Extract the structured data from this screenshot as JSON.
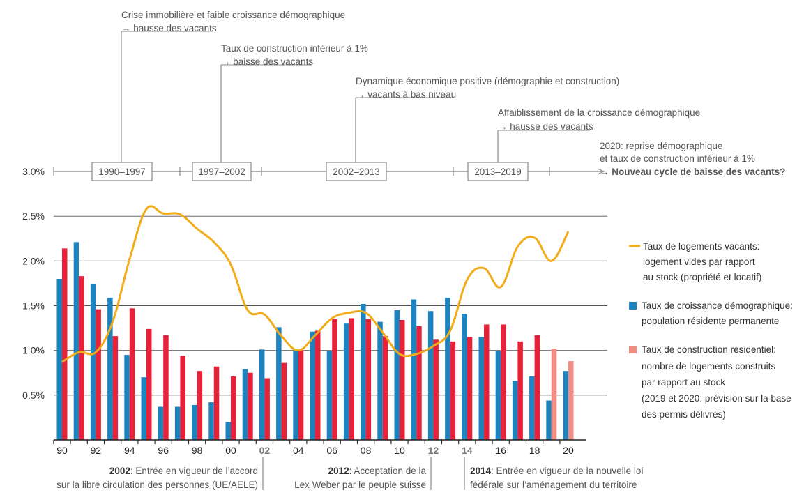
{
  "timeline": {
    "periods": [
      {
        "label": "1990–1997",
        "note_line1": "Crise immobilière et faible croissance démographique",
        "note_line2": "→ hausse des vacants"
      },
      {
        "label": "1997–2002",
        "note_line1": "Taux de construction inférieur à 1%",
        "note_line2": "→ baisse des vacants"
      },
      {
        "label": "2002–2013",
        "note_line1": "Dynamique économique positive (démographie et construction)",
        "note_line2": "→ vacants à bas niveau"
      },
      {
        "label": "2013–2019",
        "note_line1": "Affaiblissement de la croissance démographique",
        "note_line2": "→ hausse des vacants"
      }
    ],
    "final_line1": "2020: reprise démographique",
    "final_line2": "et taux de construction inférieur à 1%",
    "final_line3": "→ Nouveau cycle de baisse des vacants?"
  },
  "chart_data": {
    "type": "bar",
    "x": [
      1990,
      1991,
      1992,
      1993,
      1994,
      1995,
      1996,
      1997,
      1998,
      1999,
      2000,
      2001,
      2002,
      2003,
      2004,
      2005,
      2006,
      2007,
      2008,
      2009,
      2010,
      2011,
      2012,
      2013,
      2014,
      2015,
      2016,
      2017,
      2018,
      2019,
      2020
    ],
    "x_tick_labels": [
      {
        "year": 1990,
        "label": "90",
        "bold": false
      },
      {
        "year": 1992,
        "label": "92",
        "bold": false
      },
      {
        "year": 1994,
        "label": "94",
        "bold": false
      },
      {
        "year": 1996,
        "label": "96",
        "bold": false
      },
      {
        "year": 1998,
        "label": "98",
        "bold": false
      },
      {
        "year": 2000,
        "label": "00",
        "bold": false
      },
      {
        "year": 2002,
        "label": "02",
        "bold": true
      },
      {
        "year": 2004,
        "label": "04",
        "bold": false
      },
      {
        "year": 2006,
        "label": "06",
        "bold": false
      },
      {
        "year": 2008,
        "label": "08",
        "bold": false
      },
      {
        "year": 2010,
        "label": "10",
        "bold": false
      },
      {
        "year": 2012,
        "label": "12",
        "bold": true
      },
      {
        "year": 2014,
        "label": "14",
        "bold": true
      },
      {
        "year": 2016,
        "label": "16",
        "bold": false
      },
      {
        "year": 2018,
        "label": "18",
        "bold": false
      },
      {
        "year": 2020,
        "label": "20",
        "bold": false
      }
    ],
    "y_ticks": [
      {
        "value": 0.5,
        "label": "0.5%"
      },
      {
        "value": 1.0,
        "label": "1.0%"
      },
      {
        "value": 1.5,
        "label": "1.5%"
      },
      {
        "value": 2.0,
        "label": "2.0%"
      },
      {
        "value": 2.5,
        "label": "2.5%"
      },
      {
        "value": 3.0,
        "label": "3.0%"
      }
    ],
    "ylim": [
      0,
      3.0
    ],
    "grid": true,
    "legend_position": "right",
    "series": [
      {
        "name": "Taux de croissance démographique: population résidente permanente",
        "type": "bar",
        "color": "#1d83bf",
        "values": [
          1.8,
          2.21,
          1.74,
          1.59,
          0.95,
          0.7,
          0.37,
          0.37,
          0.39,
          0.42,
          0.2,
          0.79,
          1.01,
          1.26,
          0.99,
          1.21,
          0.99,
          1.3,
          1.52,
          1.32,
          1.45,
          1.57,
          1.44,
          1.59,
          1.41,
          1.15,
          0.99,
          0.66,
          0.71,
          0.44,
          0.77
        ]
      },
      {
        "name": "Taux de construction résidentiel: nombre de logements construits par rapport au stock (2019 et 2020: prévision sur la base des permis délivrés)",
        "type": "bar",
        "color": "#e8213a",
        "forecast_color": "#f08c82",
        "forecast_from": 2019,
        "values": [
          2.14,
          1.83,
          1.46,
          1.16,
          1.47,
          1.24,
          1.17,
          0.94,
          0.77,
          0.82,
          0.71,
          0.75,
          0.69,
          0.86,
          1.0,
          1.22,
          1.35,
          1.36,
          1.35,
          1.16,
          1.34,
          1.27,
          1.12,
          1.1,
          1.15,
          1.29,
          1.29,
          1.1,
          1.17,
          1.02,
          0.88
        ]
      },
      {
        "name": "Taux de logements vacants: logement vides par rapport au stock (propriété et locatif)",
        "type": "line",
        "color": "#f2ac1a",
        "values": [
          0.87,
          0.98,
          0.98,
          1.32,
          2.02,
          2.58,
          2.53,
          2.52,
          2.36,
          2.21,
          1.96,
          1.45,
          1.4,
          1.16,
          1.0,
          1.17,
          1.36,
          1.42,
          1.42,
          1.2,
          0.96,
          0.96,
          1.05,
          1.22,
          1.79,
          1.92,
          1.71,
          2.16,
          2.26,
          2.0,
          2.33
        ]
      }
    ]
  },
  "legend": [
    {
      "line1": "Taux de logements vacants:",
      "line2": "logement vides par rapport",
      "line3": "au stock (propriété et locatif)",
      "line4": "",
      "line5": ""
    },
    {
      "line1": "Taux de croissance démographique:",
      "line2": "population résidente permanente",
      "line3": "",
      "line4": "",
      "line5": ""
    },
    {
      "line1": "Taux de construction résidentiel:",
      "line2": "nombre de logements construits",
      "line3": "par rapport au stock",
      "line4": "(2019 et 2020: prévision sur la base",
      "line5": "des permis délivrés)"
    }
  ],
  "bottom_notes": [
    {
      "year_bold": "2002",
      "line1_rest": ":  Entrée en vigueur de l’accord",
      "line2": "sur la libre circulation des personnes (UE/AELE)"
    },
    {
      "year_bold": "2012",
      "line1_rest": ": Acceptation de la",
      "line2": "Lex Weber par le peuple suisse"
    },
    {
      "year_bold": "2014",
      "line1_rest": ": Entrée en vigueur de la nouvelle loi",
      "line2": "fédérale sur l’aménagement du territoire"
    }
  ]
}
